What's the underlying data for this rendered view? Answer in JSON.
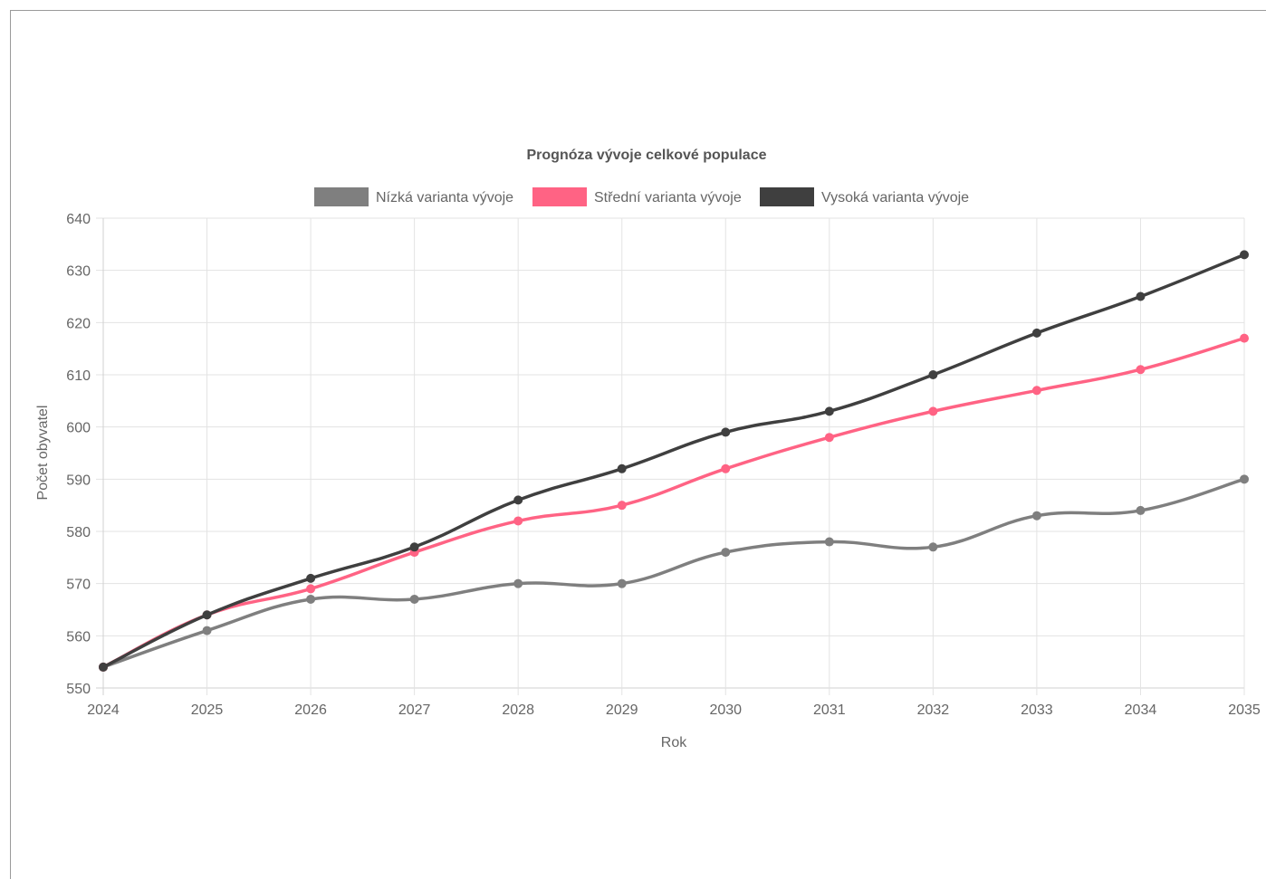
{
  "chart_data": {
    "type": "line",
    "title": "Prognóza vývoje celkové populace",
    "xlabel": "Rok",
    "ylabel": "Počet obyvatel",
    "categories": [
      "2024",
      "2025",
      "2026",
      "2027",
      "2028",
      "2029",
      "2030",
      "2031",
      "2032",
      "2033",
      "2034",
      "2035"
    ],
    "ylim": [
      550,
      640
    ],
    "yticks": [
      "550",
      "560",
      "570",
      "580",
      "590",
      "600",
      "610",
      "620",
      "630",
      "640"
    ],
    "grid": true,
    "legend_position": "top",
    "series": [
      {
        "name": "Nízká varianta vývoje",
        "color": "#7f7f7f",
        "values": [
          554,
          561,
          567,
          567,
          570,
          570,
          576,
          578,
          577,
          583,
          584,
          590
        ]
      },
      {
        "name": "Střední varianta vývoje",
        "color": "#ff6384",
        "values": [
          554,
          564,
          569,
          576,
          582,
          585,
          592,
          598,
          603,
          607,
          611,
          617
        ]
      },
      {
        "name": "Vysoká varianta vývoje",
        "color": "#3f3f3f",
        "values": [
          554,
          564,
          571,
          577,
          586,
          592,
          599,
          603,
          610,
          618,
          625,
          633
        ]
      }
    ]
  }
}
